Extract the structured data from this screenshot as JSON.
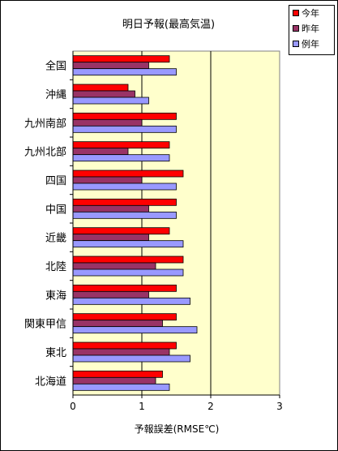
{
  "chart_data": {
    "type": "bar",
    "title": "明日予報(最高気温)",
    "xlabel": "予報誤差(RMSE℃)",
    "xlim": [
      0,
      3
    ],
    "xticks": [
      "0",
      "1",
      "2",
      "3"
    ],
    "categories": [
      "全国",
      "沖縄",
      "九州南部",
      "九州北部",
      "四国",
      "中国",
      "近畿",
      "北陸",
      "東海",
      "関東甲信",
      "東北",
      "北海道"
    ],
    "series": [
      {
        "name": "今年",
        "color": "#ff0000",
        "values": [
          1.4,
          0.8,
          1.5,
          1.4,
          1.6,
          1.5,
          1.4,
          1.6,
          1.5,
          1.5,
          1.5,
          1.3
        ]
      },
      {
        "name": "昨年",
        "color": "#993366",
        "values": [
          1.1,
          0.9,
          1.0,
          0.8,
          1.0,
          1.1,
          1.1,
          1.2,
          1.1,
          1.3,
          1.4,
          1.2
        ]
      },
      {
        "name": "例年",
        "color": "#9999ff",
        "values": [
          1.5,
          1.1,
          1.5,
          1.4,
          1.5,
          1.5,
          1.6,
          1.6,
          1.7,
          1.8,
          1.7,
          1.4
        ]
      }
    ],
    "plot_background": "#ffffcc",
    "grid": true,
    "legend_position": "top-right"
  }
}
